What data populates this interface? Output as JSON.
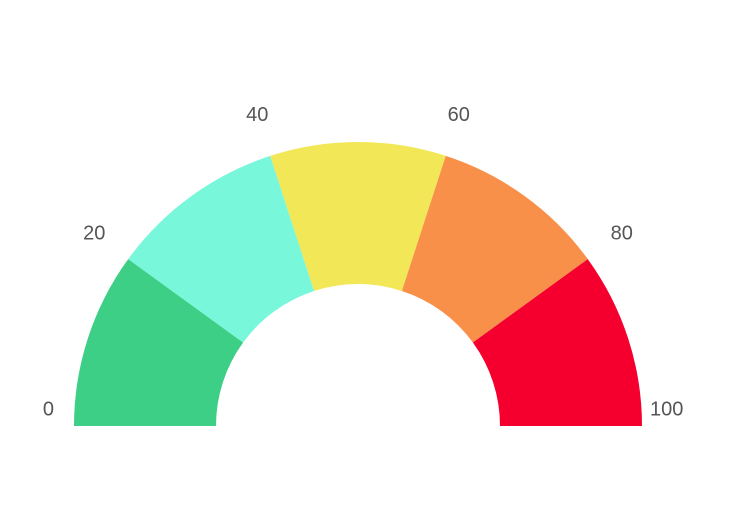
{
  "chart_data": {
    "type": "gauge",
    "min": 0,
    "max": 100,
    "bands": [
      {
        "from": 0,
        "to": 20,
        "color": "#3ccf85"
      },
      {
        "from": 20,
        "to": 40,
        "color": "#79f7db"
      },
      {
        "from": 40,
        "to": 60,
        "color": "#f2e756"
      },
      {
        "from": 60,
        "to": 80,
        "color": "#f8904a"
      },
      {
        "from": 80,
        "to": 100,
        "color": "#f5002e"
      }
    ],
    "ticks": [
      {
        "value": 0,
        "label": "0"
      },
      {
        "value": 20,
        "label": "20"
      },
      {
        "value": 40,
        "label": "40"
      },
      {
        "value": 60,
        "label": "60"
      },
      {
        "value": 80,
        "label": "80"
      },
      {
        "value": 100,
        "label": "100"
      }
    ]
  }
}
